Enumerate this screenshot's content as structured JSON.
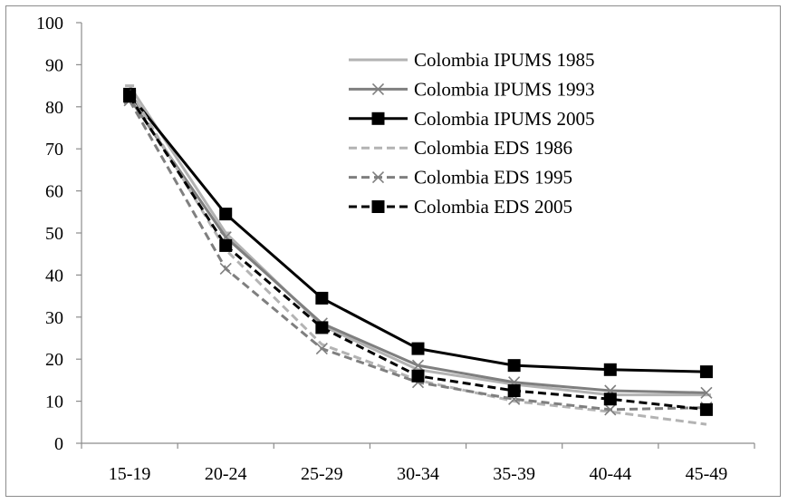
{
  "chart_data": {
    "type": "line",
    "title": "",
    "xlabel": "",
    "ylabel": "",
    "ylim": [
      0,
      100
    ],
    "yticks": [
      0,
      10,
      20,
      30,
      40,
      50,
      60,
      70,
      80,
      90,
      100
    ],
    "grid": false,
    "legend_position": "top-right",
    "categories": [
      "15-19",
      "20-24",
      "25-29",
      "30-34",
      "35-39",
      "40-44",
      "45-49"
    ],
    "series": [
      {
        "name": "Colombia IPUMS 1985",
        "values": [
          85,
          50,
          28,
          17.5,
          14,
          11.5,
          11.5
        ],
        "color": "#b3b3b3",
        "dash": "solid",
        "marker": "dash"
      },
      {
        "name": "Colombia IPUMS 1993",
        "values": [
          82,
          49,
          28.5,
          18.5,
          14.5,
          12.5,
          12
        ],
        "color": "#7f7f7f",
        "dash": "solid",
        "marker": "x"
      },
      {
        "name": "Colombia IPUMS 2005",
        "values": [
          83,
          54.5,
          34.5,
          22.5,
          18.5,
          17.5,
          17
        ],
        "color": "#000000",
        "dash": "solid",
        "marker": "square"
      },
      {
        "name": "Colombia EDS 1986",
        "values": [
          84,
          46,
          23.5,
          15,
          10,
          7.5,
          4.5
        ],
        "color": "#b3b3b3",
        "dash": "dashed",
        "marker": "none"
      },
      {
        "name": "Colombia EDS 1995",
        "values": [
          81.5,
          41.5,
          22.5,
          14.5,
          10.5,
          8,
          8.5
        ],
        "color": "#7f7f7f",
        "dash": "dashed",
        "marker": "x"
      },
      {
        "name": "Colombia EDS 2005",
        "values": [
          82.5,
          47,
          27.5,
          16,
          12.5,
          10.5,
          8
        ],
        "color": "#000000",
        "dash": "dashed",
        "marker": "square"
      }
    ]
  }
}
